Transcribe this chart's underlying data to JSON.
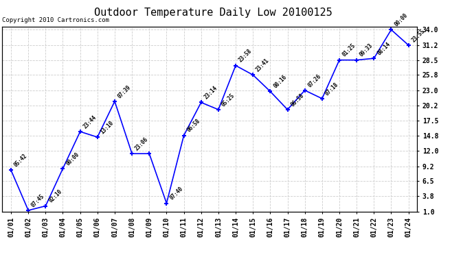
{
  "title": "Outdoor Temperature Daily Low 20100125",
  "copyright": "Copyright 2010 Cartronics.com",
  "x_labels": [
    "01/01",
    "01/02",
    "01/03",
    "01/04",
    "01/05",
    "01/06",
    "01/07",
    "01/08",
    "01/09",
    "01/10",
    "01/11",
    "01/12",
    "01/13",
    "01/14",
    "01/15",
    "01/16",
    "01/17",
    "01/18",
    "01/19",
    "01/20",
    "01/21",
    "01/22",
    "01/23",
    "01/24"
  ],
  "x_indices": [
    0,
    1,
    2,
    3,
    4,
    5,
    6,
    7,
    8,
    9,
    10,
    11,
    12,
    13,
    14,
    15,
    16,
    17,
    18,
    19,
    20,
    21,
    22,
    23
  ],
  "y_values": [
    8.5,
    1.2,
    2.0,
    8.8,
    15.5,
    14.5,
    21.0,
    11.5,
    11.5,
    2.5,
    14.8,
    20.8,
    19.5,
    27.5,
    25.8,
    22.8,
    19.5,
    23.0,
    21.5,
    28.5,
    28.5,
    28.8,
    34.0,
    31.2
  ],
  "point_labels": [
    "05:42",
    "07:45",
    "02:10",
    "00:00",
    "23:44",
    "13:10",
    "07:39",
    "23:06",
    "",
    "07:40",
    "06:58",
    "23:14",
    "05:25",
    "23:58",
    "23:41",
    "08:16",
    "06:58",
    "07:26",
    "07:18",
    "01:25",
    "09:33",
    "08:14",
    "00:00",
    "23:55"
  ],
  "ylim_min": 0.9,
  "ylim_max": 34.5,
  "yticks": [
    1.0,
    3.8,
    6.5,
    9.2,
    12.0,
    14.8,
    17.5,
    20.2,
    23.0,
    25.8,
    28.5,
    31.2,
    34.0
  ],
  "line_color": "blue",
  "marker_color": "blue",
  "bg_color": "white",
  "grid_color": "#cccccc",
  "title_fontsize": 11,
  "annot_fontsize": 5.5,
  "tick_fontsize": 7,
  "copyright_fontsize": 6.5
}
